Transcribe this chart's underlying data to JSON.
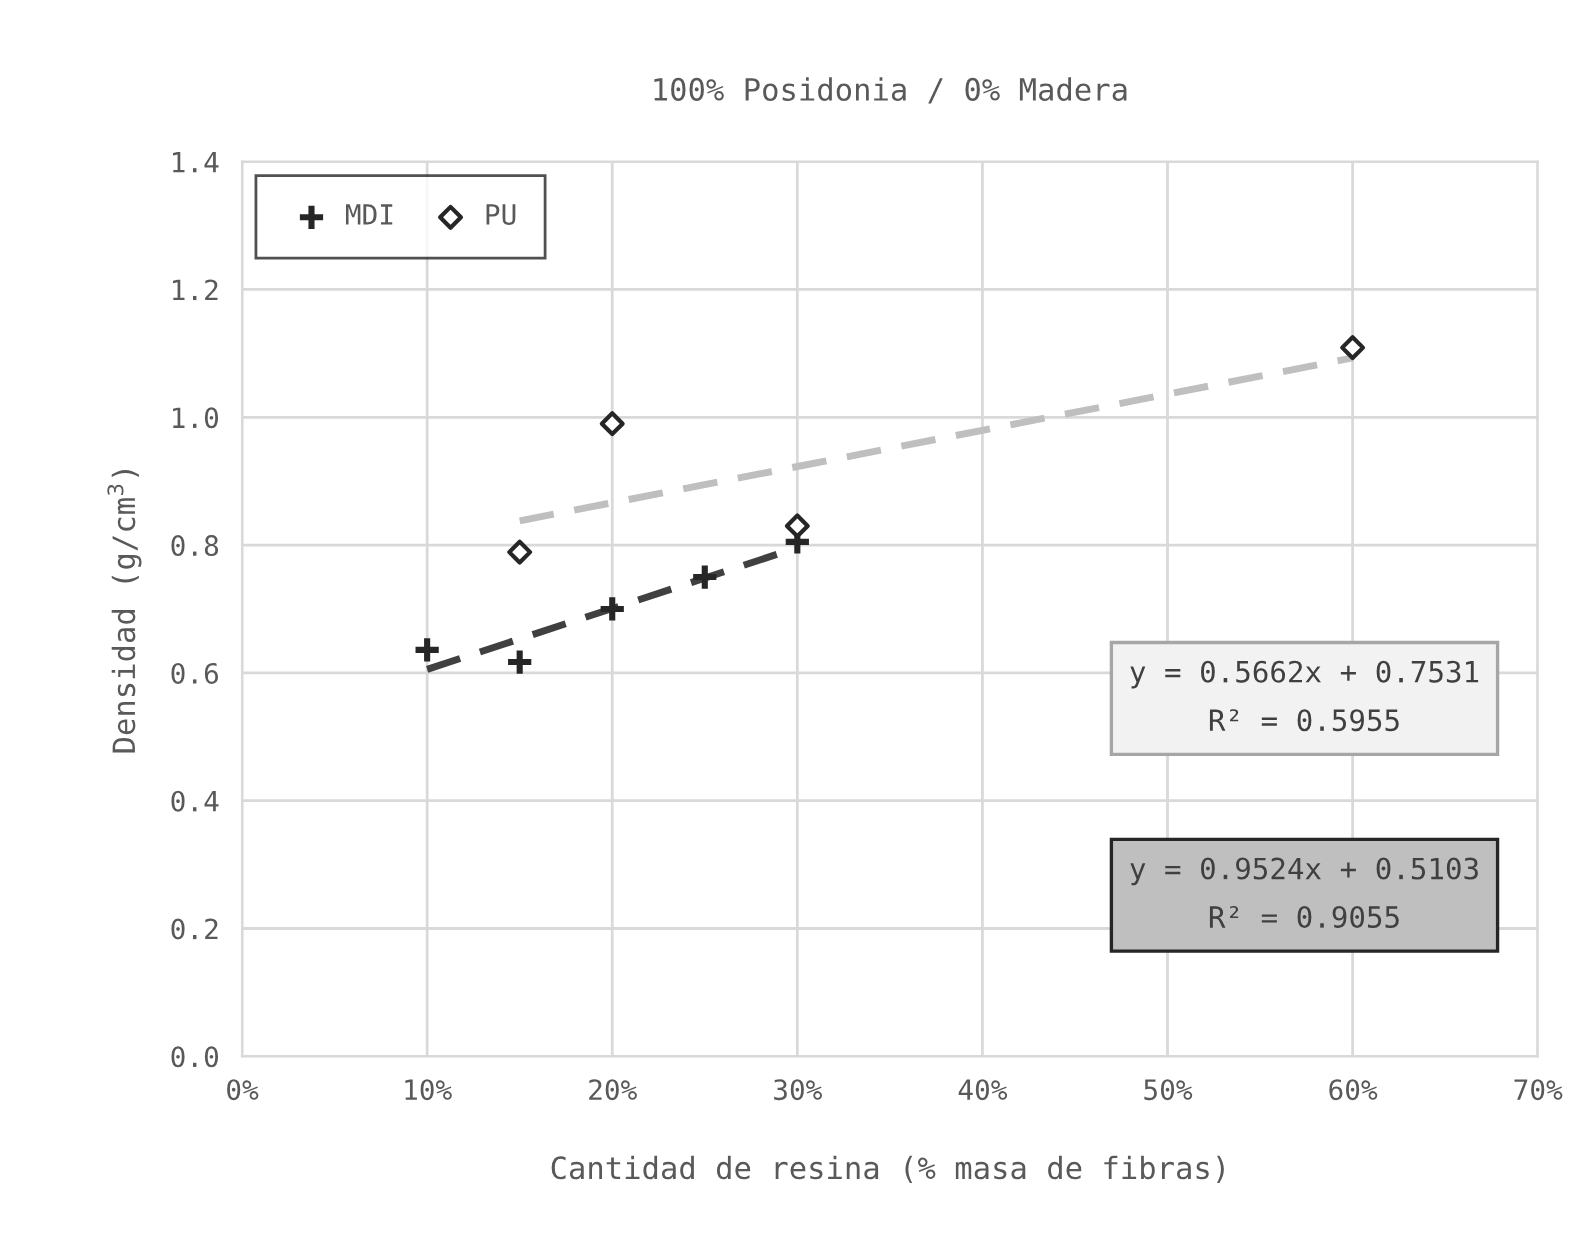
{
  "chart_data": {
    "type": "scatter",
    "title": "100% Posidonia / 0% Madera",
    "xlabel": "Cantidad de resina (% masa de fibras)",
    "ylabel": "Densidad (g/cm$^{3}$)",
    "series": [
      {
        "name": "MDI",
        "color": "#262626",
        "marker": "cross",
        "x": [
          0.1,
          0.15,
          0.2,
          0.25,
          0.3
        ],
        "values": [
          0.636,
          0.617,
          0.7,
          0.75,
          0.805
        ]
      },
      {
        "name": "PU",
        "color": "#262626",
        "marker": "diamond",
        "x": [
          0.15,
          0.2,
          0.3,
          0.6
        ],
        "values": [
          0.789,
          0.99,
          0.83,
          1.109
        ]
      },
      {
        "type": "line",
        "color": "#bfbfbf",
        "line_style": "dashed",
        "marker": "none",
        "x": [
          0.15,
          0.6
        ],
        "values": [
          0.838,
          1.0928
        ]
      },
      {
        "type": "line",
        "color": "#404040",
        "line_style": "dashed",
        "marker": "none",
        "x": [
          0.1,
          0.3
        ],
        "values": [
          0.6055,
          0.796
        ]
      }
    ],
    "annotations": [
      "y = 0.5662x + 0.7531\nR² = 0.5955",
      "y = 0.9524x + 0.5103\nR² = 0.9055"
    ],
    "xlim": [
      0,
      0.7
    ],
    "xticks": [
      {
        "value": 0,
        "label": "0%"
      },
      {
        "value": 0.1,
        "label": "10%"
      },
      {
        "value": 0.2,
        "label": "20%"
      },
      {
        "value": 0.3,
        "label": "30%"
      },
      {
        "value": 0.4,
        "label": "40%"
      },
      {
        "value": 0.5,
        "label": "50%"
      },
      {
        "value": 0.6,
        "label": "60%"
      },
      {
        "value": 0.7,
        "label": "70%"
      }
    ],
    "ylim": [
      0,
      1.4
    ],
    "yticks": [
      {
        "value": 0,
        "label": "0.0"
      },
      {
        "value": 0.2,
        "label": "0.2"
      },
      {
        "value": 0.4,
        "label": "0.4"
      },
      {
        "value": 0.6,
        "label": "0.6"
      },
      {
        "value": 0.8,
        "label": "0.8"
      },
      {
        "value": 1.0,
        "label": "1.0"
      },
      {
        "value": 1.2,
        "label": "1.2"
      },
      {
        "value": 1.4,
        "label": "1.4"
      }
    ],
    "grid": true,
    "legend": "top left"
  }
}
